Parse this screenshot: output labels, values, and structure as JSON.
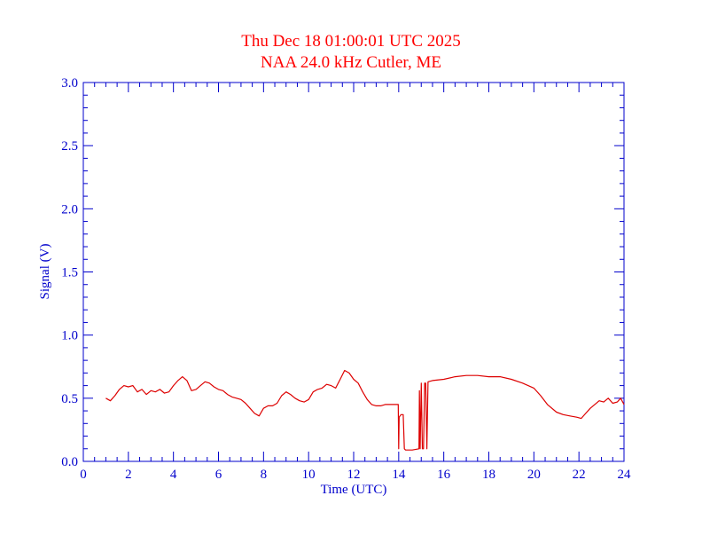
{
  "chart_data": {
    "type": "line",
    "title": "Thu Dec 18 01:00:01 UTC 2025",
    "subtitle": "NAA 24.0 kHz Cutler, ME",
    "xlabel": "Time (UTC)",
    "ylabel": "Signal (V)",
    "xlim": [
      0,
      24
    ],
    "ylim": [
      0,
      3.0
    ],
    "x_ticks": [
      "0",
      "2",
      "4",
      "6",
      "8",
      "10",
      "12",
      "14",
      "16",
      "18",
      "20",
      "22",
      "24"
    ],
    "y_ticks": [
      "0.0",
      "0.5",
      "1.0",
      "1.5",
      "2.0",
      "2.5",
      "3.0"
    ],
    "grid": false,
    "colors": {
      "axes": "#0000cc",
      "line": "#dd0000",
      "title": "#ff0000"
    },
    "series": [
      {
        "x": [
          1.0,
          1.2,
          1.4,
          1.6,
          1.8,
          2.0,
          2.2,
          2.4,
          2.6,
          2.8,
          3.0,
          3.2,
          3.4,
          3.6,
          3.8,
          4.0,
          4.2,
          4.4,
          4.6,
          4.8,
          5.0,
          5.2,
          5.4,
          5.6,
          5.8,
          6.0,
          6.2,
          6.4,
          6.6,
          6.8,
          7.0,
          7.2,
          7.4,
          7.6,
          7.8,
          8.0,
          8.2,
          8.4,
          8.6,
          8.8,
          9.0,
          9.2,
          9.4,
          9.6,
          9.8,
          10.0,
          10.2,
          10.4,
          10.6,
          10.8,
          11.0,
          11.2,
          11.4,
          11.6,
          11.8,
          12.0,
          12.2,
          12.4,
          12.6,
          12.8,
          13.0,
          13.2,
          13.4,
          13.6,
          13.9,
          13.98,
          14.0,
          14.02,
          14.1,
          14.2,
          14.25,
          14.3,
          14.6,
          14.9,
          14.92,
          14.95,
          15.0,
          15.05,
          15.1,
          15.15,
          15.2,
          15.25,
          15.3,
          15.5,
          16.0,
          16.5,
          17.0,
          17.5,
          18.0,
          18.5,
          19.0,
          19.5,
          20.0,
          20.3,
          20.6,
          21.0,
          21.3,
          21.6,
          21.9,
          22.1,
          22.3,
          22.5,
          22.7,
          22.9,
          23.1,
          23.3,
          23.5,
          23.7,
          23.85,
          24.0
        ],
        "y": [
          0.5,
          0.48,
          0.52,
          0.57,
          0.6,
          0.59,
          0.6,
          0.55,
          0.57,
          0.53,
          0.56,
          0.55,
          0.57,
          0.54,
          0.55,
          0.6,
          0.64,
          0.67,
          0.64,
          0.56,
          0.57,
          0.6,
          0.63,
          0.62,
          0.59,
          0.57,
          0.56,
          0.53,
          0.51,
          0.5,
          0.49,
          0.46,
          0.42,
          0.38,
          0.36,
          0.42,
          0.44,
          0.44,
          0.46,
          0.52,
          0.55,
          0.53,
          0.5,
          0.48,
          0.47,
          0.49,
          0.55,
          0.57,
          0.58,
          0.61,
          0.6,
          0.58,
          0.65,
          0.72,
          0.7,
          0.65,
          0.62,
          0.55,
          0.49,
          0.45,
          0.44,
          0.44,
          0.45,
          0.45,
          0.45,
          0.45,
          0.1,
          0.35,
          0.37,
          0.37,
          0.1,
          0.09,
          0.09,
          0.1,
          0.56,
          0.1,
          0.62,
          0.1,
          0.1,
          0.62,
          0.62,
          0.1,
          0.63,
          0.64,
          0.65,
          0.67,
          0.68,
          0.68,
          0.67,
          0.67,
          0.65,
          0.62,
          0.58,
          0.52,
          0.45,
          0.39,
          0.37,
          0.36,
          0.35,
          0.34,
          0.38,
          0.42,
          0.45,
          0.48,
          0.47,
          0.5,
          0.46,
          0.47,
          0.5,
          0.45
        ]
      }
    ]
  }
}
